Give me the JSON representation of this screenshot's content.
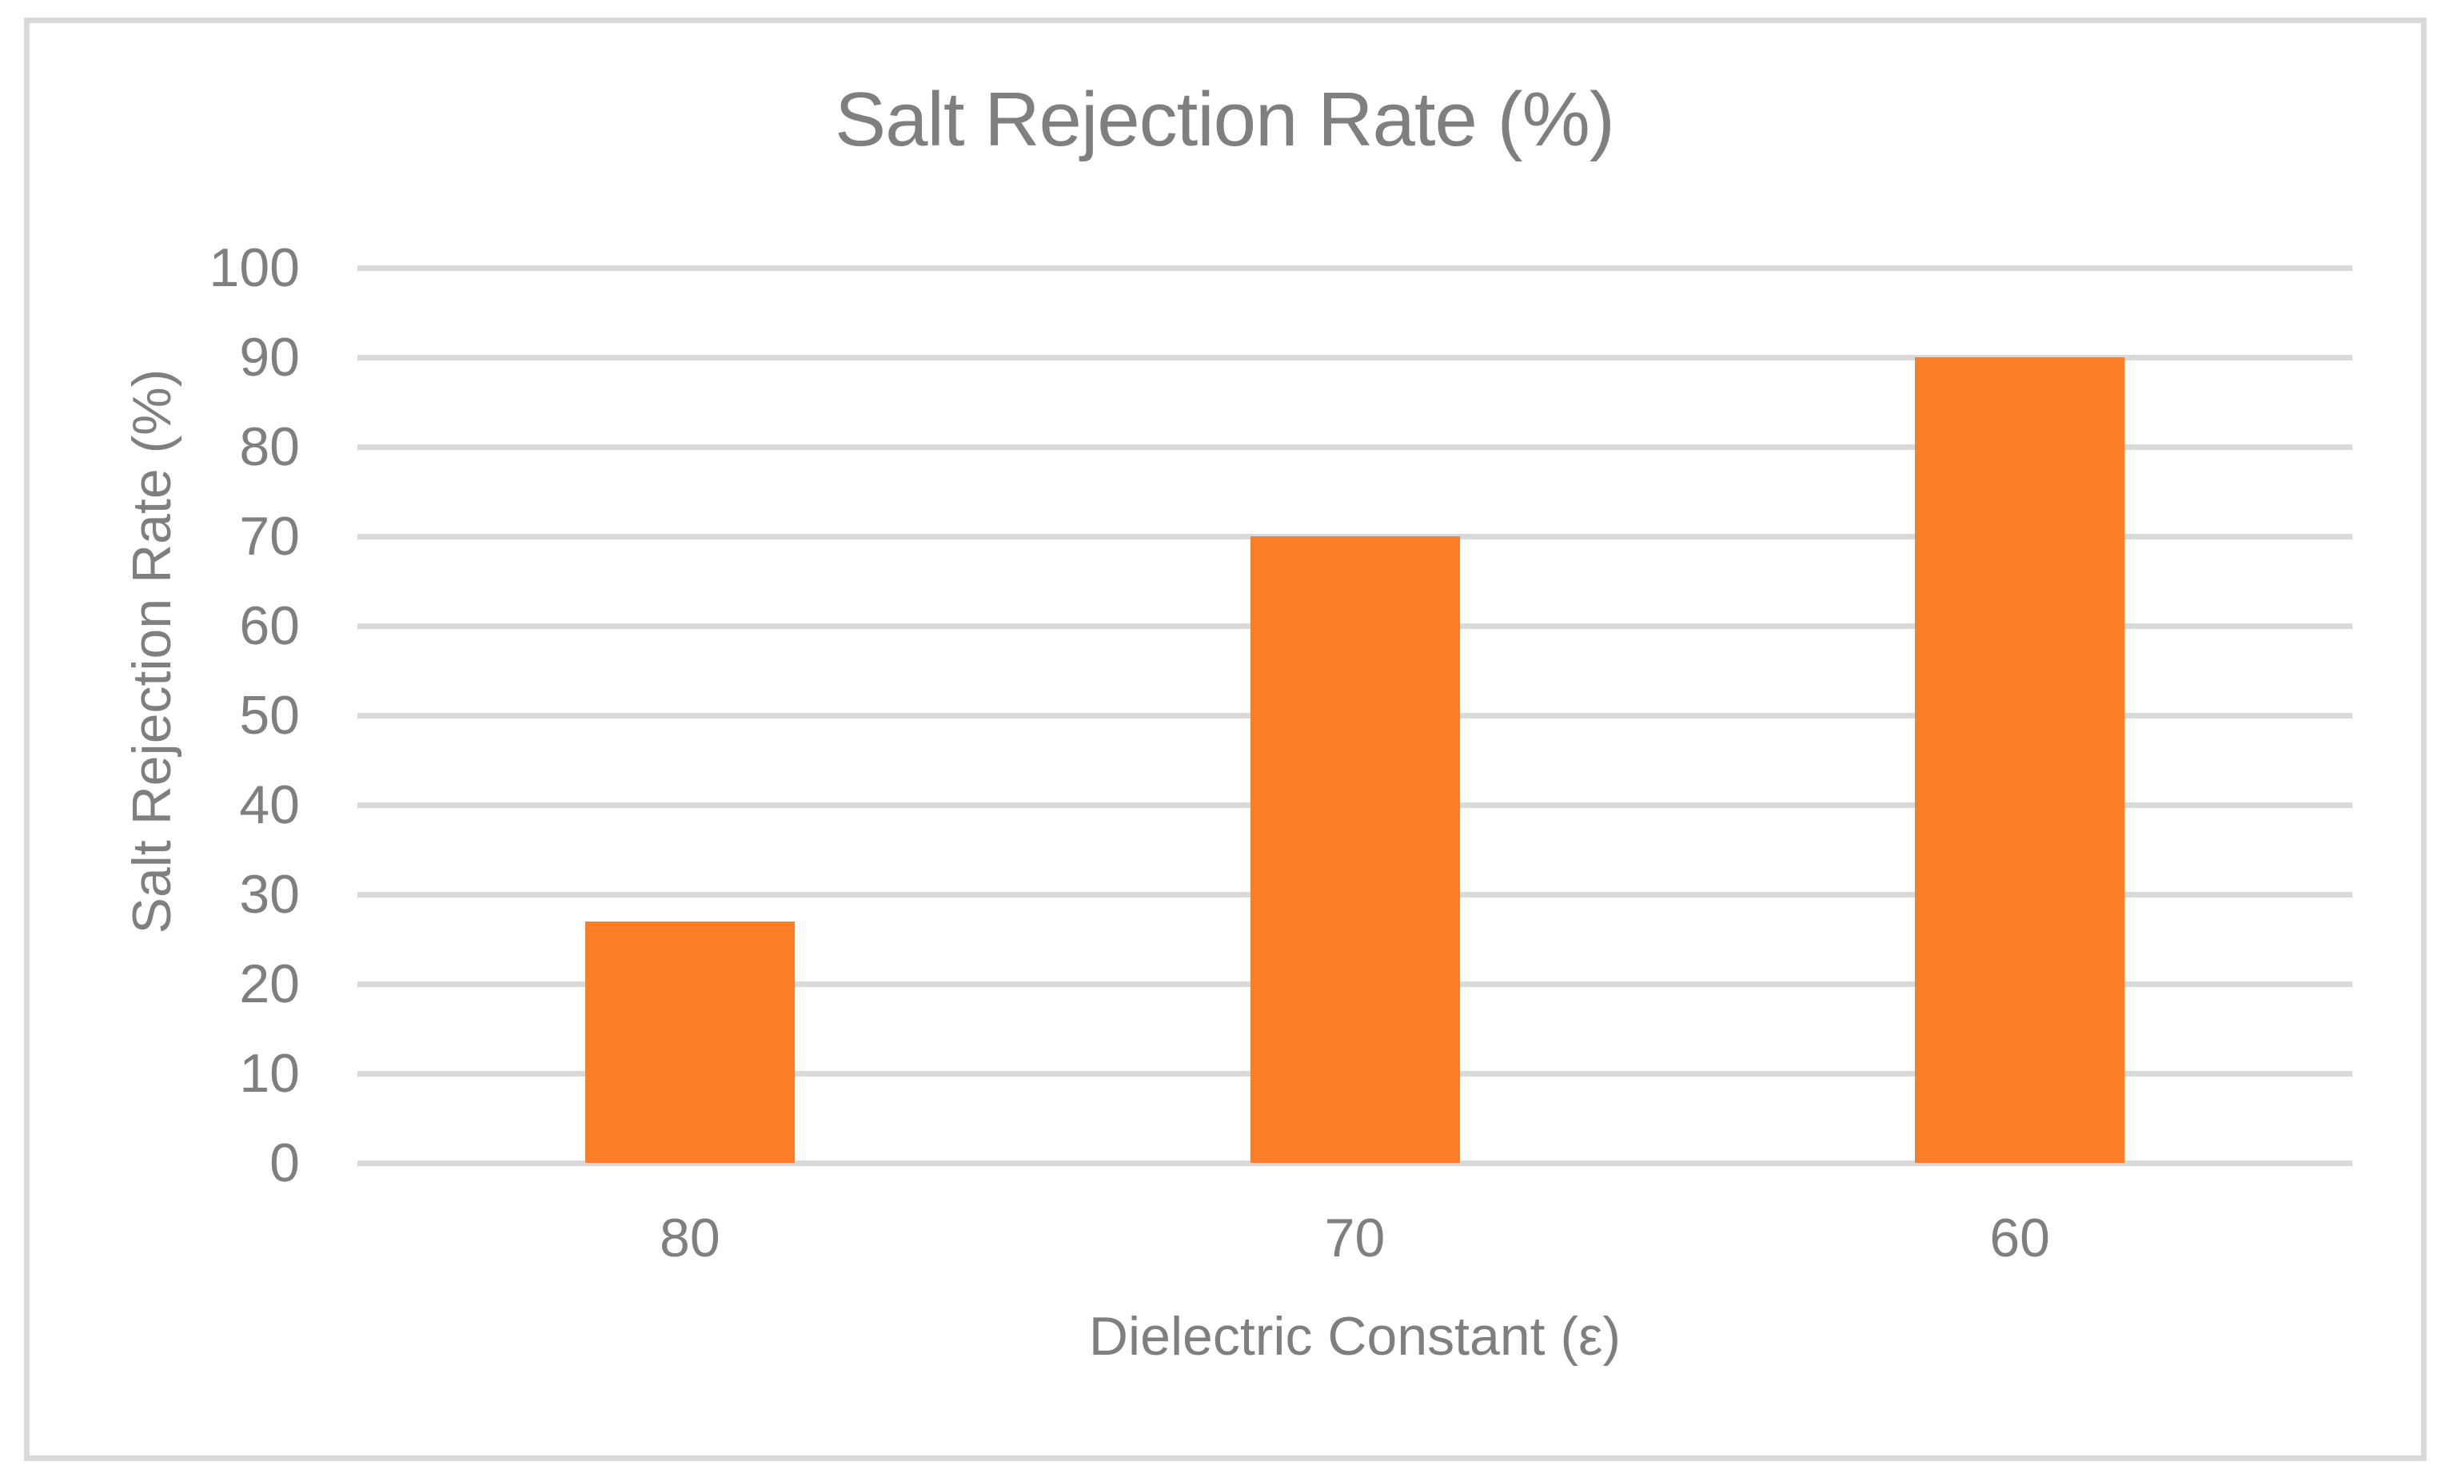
{
  "chart_data": {
    "type": "bar",
    "title": "Salt Rejection Rate (%)",
    "xlabel": "Dielectric Constant (ε)",
    "ylabel": "Salt Rejection Rate (%)",
    "categories": [
      "80",
      "70",
      "60"
    ],
    "values": [
      27,
      70,
      90
    ],
    "ylim": [
      0,
      100
    ],
    "yticks": [
      0,
      10,
      20,
      30,
      40,
      50,
      60,
      70,
      80,
      90,
      100
    ],
    "grid": "horizontal-only",
    "legend": "none",
    "colors": {
      "bar": "#fb7d26",
      "gridline": "#d9d9d9",
      "frame_border": "#d9d9d9",
      "text": "#7f7f7f",
      "background": "#ffffff"
    }
  }
}
